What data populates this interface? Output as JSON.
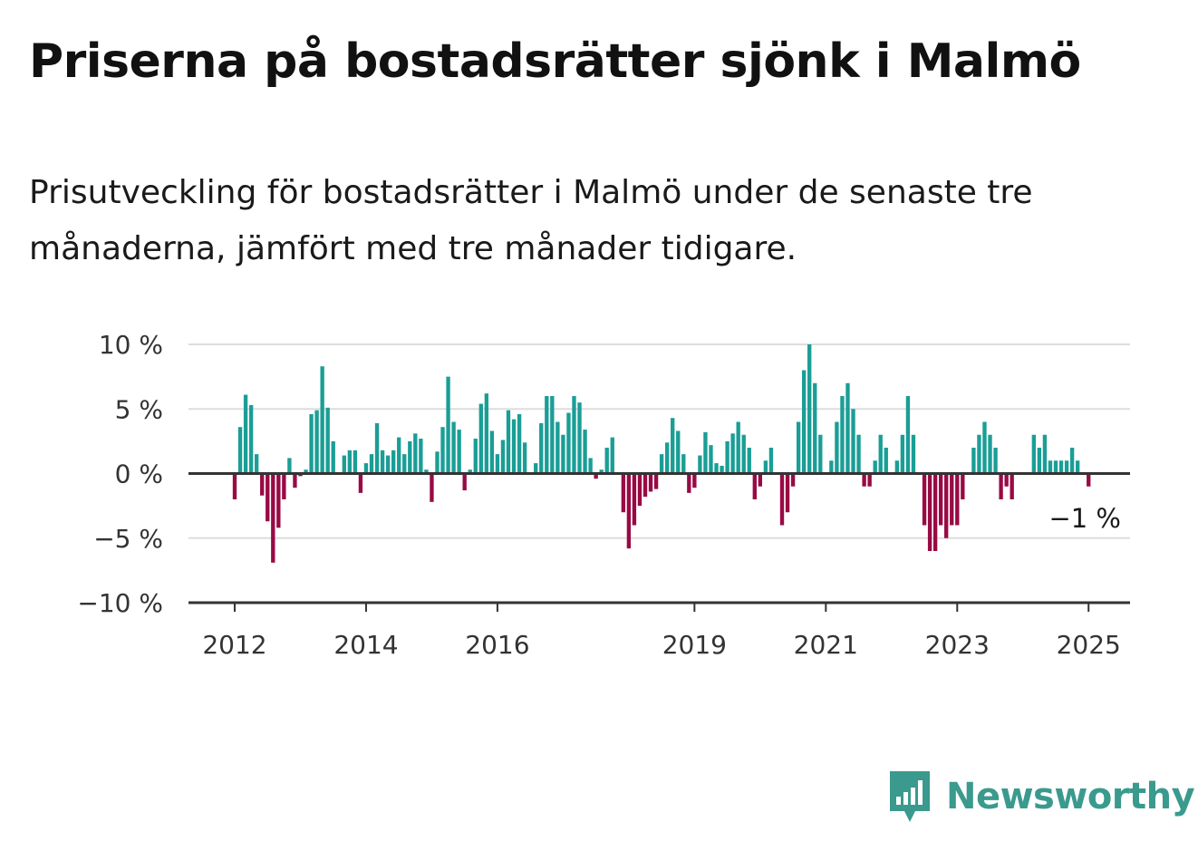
{
  "title": "Priserna på bostadsrätter sjönk i Malmö",
  "subtitle": "Prisutveckling för bostadsrätter i Malmö under de senaste tre månaderna, jämfört med tre månader tidigare.",
  "brand": {
    "name": "Newsworthy",
    "icon": "newsworthy-logo-icon",
    "color": "#3a9a8d"
  },
  "colors": {
    "positive": "#1a9e96",
    "negative": "#990a45",
    "grid": "#dddddd",
    "axis": "#333333"
  },
  "chart_data": {
    "type": "bar",
    "title": "Priserna på bostadsrätter sjönk i Malmö",
    "xlabel": "",
    "ylabel": "",
    "ylim": [
      -10,
      10
    ],
    "y_ticks": [
      10,
      5,
      0,
      -5,
      -10
    ],
    "y_tick_labels": [
      "10 %",
      "5 %",
      "0 %",
      "−5 %",
      "−10 %"
    ],
    "x_ticks": [
      2012,
      2014,
      2016,
      2019,
      2021,
      2023,
      2025
    ],
    "x_tick_labels": [
      "2012",
      "2014",
      "2016",
      "2019",
      "2021",
      "2023",
      "2025"
    ],
    "grid": true,
    "legend": "none",
    "end_label": "−1 %",
    "x_start": "2012-01",
    "x_end": "2025-02",
    "values": [
      -2,
      3.6,
      6.1,
      5.3,
      1.5,
      -1.7,
      -3.7,
      -6.9,
      -4.2,
      -2,
      1.2,
      -1.1,
      -0.2,
      0.3,
      4.6,
      4.9,
      8.3,
      5.1,
      2.5,
      0,
      1.4,
      1.8,
      1.8,
      -1.5,
      0.8,
      1.5,
      3.9,
      1.8,
      1.4,
      1.8,
      2.8,
      1.5,
      2.5,
      3.1,
      2.7,
      0.3,
      -2.2,
      1.7,
      3.6,
      7.5,
      4,
      3.4,
      -1.3,
      0.3,
      2.7,
      5.4,
      6.2,
      3.3,
      1.5,
      2.6,
      4.9,
      4.2,
      4.6,
      2.4,
      0,
      0.8,
      3.9,
      6,
      6,
      4,
      3,
      4.7,
      6,
      5.5,
      3.4,
      1.2,
      -0.4,
      0.3,
      2,
      2.8,
      0,
      -3,
      -5.8,
      -4,
      -2.5,
      -1.8,
      -1.4,
      -1.2,
      1.5,
      2.4,
      4.3,
      3.3,
      1.5,
      -1.5,
      -1.1,
      1.4,
      3.2,
      2.2,
      0.8,
      0.6,
      2.5,
      3.1,
      4,
      3,
      2,
      -2,
      -1,
      1,
      2,
      0,
      -4,
      -3,
      -1,
      4,
      8,
      10,
      7,
      3,
      0,
      1,
      4,
      6,
      7,
      5,
      3,
      -1,
      -1,
      1,
      3,
      2,
      0,
      1,
      3,
      6,
      3,
      0,
      -4,
      -6,
      -6,
      -4,
      -5,
      -4,
      -4,
      -2,
      0,
      2,
      3,
      4,
      3,
      2,
      -2,
      -1,
      -2,
      0,
      0,
      0,
      3,
      2,
      3,
      1,
      1,
      1,
      1,
      2,
      1,
      0,
      -1
    ]
  }
}
